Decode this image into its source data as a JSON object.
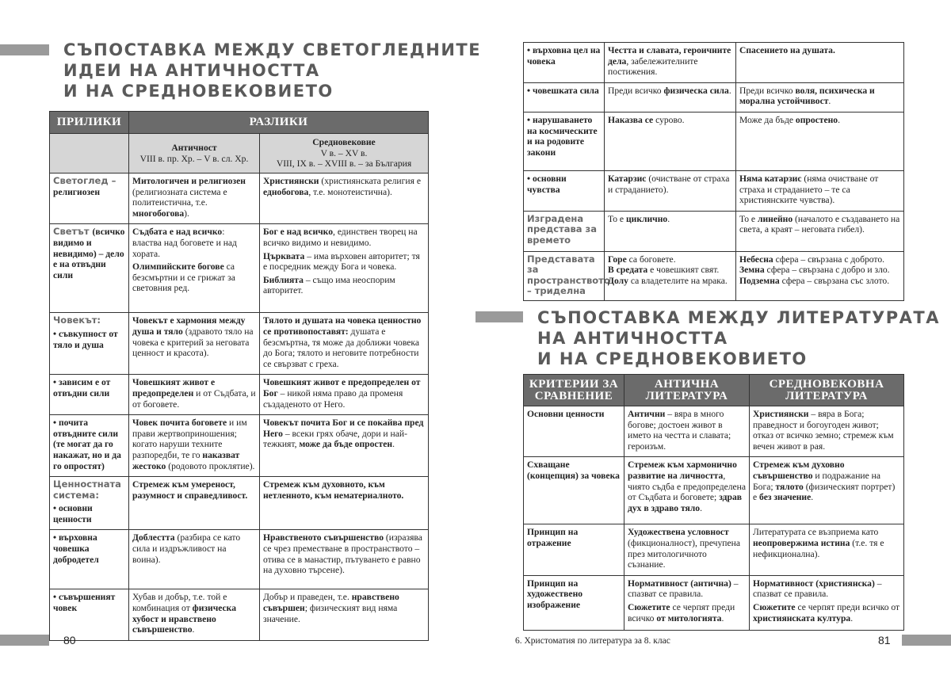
{
  "left_page": {
    "title": [
      "СЪПОСТАВКА МЕЖДУ СВЕТОГЛЕДНИТЕ",
      "ИДЕИ НА АНТИЧНОСТТА",
      "И НА СРЕДНОВЕКОВИЕТО"
    ],
    "table": {
      "header_similarities": "ПРИЛИКИ",
      "header_differences": "РАЗЛИКИ",
      "antiquity": {
        "name": "Античност",
        "period": "VIII в. пр. Хр. – V в. сл. Хр."
      },
      "middle_ages": {
        "name": "Средновековие",
        "period": "V в. – XV в.",
        "period_bg": "VIII, IX в. – XVIII в. – за България"
      },
      "rows": [
        [
          [
            [
              {
                "h": "Светоглед – "
              },
              {
                "b": "религиозен"
              }
            ]
          ],
          [
            [
              {
                "b": "Митологичен и религиозен"
              },
              {
                "t": " (религиозната система е политеистична, т.е. "
              },
              {
                "b": "многобогова"
              },
              {
                "t": ")."
              }
            ]
          ],
          [
            [
              {
                "b": "Християнски"
              },
              {
                "t": " (християнската религия е "
              },
              {
                "b": "еднобогова"
              },
              {
                "t": ", т.е. монотеистична)."
              }
            ]
          ]
        ],
        [
          [
            [
              {
                "h": "Светът "
              },
              {
                "b": "(всичко видимо и невидимо) – дело е на отвъдни сили"
              }
            ]
          ],
          [
            [
              {
                "b": "Съдбата е над всичко"
              },
              {
                "t": ": властва над боговете и над хората."
              }
            ],
            [
              {
                "b": "Олимпийските богове"
              },
              {
                "t": " са безсмъртни и се грижат за световния ред."
              }
            ]
          ],
          [
            [
              {
                "b": "Бог е над всичко"
              },
              {
                "t": ", единствен творец на всичко видимо и невидимо."
              }
            ],
            [
              {
                "b": "Църквата"
              },
              {
                "t": " – има върховен авторитет; тя е посредник между Бога и човека."
              }
            ],
            [
              {
                "b": "Библията"
              },
              {
                "t": " – също има неоспорим авторитет."
              }
            ]
          ]
        ],
        [
          [
            [
              {
                "h": "Човекът:"
              }
            ],
            [
              {
                "b": "• съвкупност от тяло и душа"
              }
            ]
          ],
          [
            [
              {
                "b": "Човекът е хармония между душа и тяло"
              },
              {
                "t": " (здравото тяло на човека е критерий за неговата ценност и красота)."
              }
            ]
          ],
          [
            [
              {
                "b": "Тялото и душата на човека ценностно се противопоставят:"
              },
              {
                "t": " душата е безсмъртна, тя може да доближи човека до Бога; тялото и неговите потребности се свързват с греха."
              }
            ]
          ]
        ],
        [
          [
            [
              {
                "b": "• зависим е от отвъдни сили"
              }
            ]
          ],
          [
            [
              {
                "b": "Човешкият живот е предопределен"
              },
              {
                "t": " и от Съдбата, и от боговете."
              }
            ]
          ],
          [
            [
              {
                "b": "Човешкият живот е предопределен от Бог"
              },
              {
                "t": " – никой няма право да променя създаденото от Него."
              }
            ]
          ]
        ],
        [
          [
            [
              {
                "b": "• почита отвъдните сили (те могат да го накажат, но и да го опростят)"
              }
            ]
          ],
          [
            [
              {
                "b": "Човек почита боговете"
              },
              {
                "t": " и им прави жертвоприношения; когато наруши техните разпоредби, те го "
              },
              {
                "b": "наказват жестоко"
              },
              {
                "t": " (родовото проклятие)."
              }
            ]
          ],
          [
            [
              {
                "b": "Човекът почита Бог и се покайва пред Него"
              },
              {
                "t": " – всеки грях обаче, дори и най-тежкият, "
              },
              {
                "b": "може да бъде опростен"
              },
              {
                "t": "."
              }
            ]
          ]
        ],
        [
          [
            [
              {
                "h": "Ценностната система:"
              }
            ],
            [
              {
                "b": "• основни ценности"
              }
            ]
          ],
          [
            [
              {
                "b": "Стремеж към умереност, разумност и справедливост."
              }
            ]
          ],
          [
            [
              {
                "b": "Стремеж към духовното, към нетленното, към нематериалното."
              }
            ]
          ]
        ],
        [
          [
            [
              {
                "b": "• върховна човешка добродетел"
              }
            ]
          ],
          [
            [
              {
                "b": "Доблестта"
              },
              {
                "t": " (разбира се като сила и издръжливост на воина)."
              }
            ]
          ],
          [
            [
              {
                "b": "Нравственото съвършенство"
              },
              {
                "t": " (изразява се чрез преместване в пространството – отива се в манастир, пътуването е равно на духовно търсене)."
              }
            ]
          ]
        ],
        [
          [
            [
              {
                "b": "• съвършеният човек"
              }
            ]
          ],
          [
            [
              {
                "t": "Хубав и добър, т.е. той е комбинация от "
              },
              {
                "b": "физическа хубост и нравствено съвършенство"
              },
              {
                "t": "."
              }
            ]
          ],
          [
            [
              {
                "t": "Добър и праведен, т.е. "
              },
              {
                "b": "нравствено съвършен"
              },
              {
                "t": "; физическият вид няма значение."
              }
            ]
          ]
        ]
      ]
    },
    "page_number": "80"
  },
  "right_page": {
    "table_continued": {
      "rows": [
        [
          [
            [
              {
                "b": "• върховна цел на човека"
              }
            ]
          ],
          [
            [
              {
                "b": "Честта и славата, героичните дела"
              },
              {
                "t": ", забележителните постижения."
              }
            ]
          ],
          [
            [
              {
                "b": "Спасението на душата."
              }
            ]
          ]
        ],
        [
          [
            [
              {
                "b": "• човешката сила"
              }
            ]
          ],
          [
            [
              {
                "t": "Преди всичко "
              },
              {
                "b": "физическа сила"
              },
              {
                "t": "."
              }
            ]
          ],
          [
            [
              {
                "t": "Преди всичко "
              },
              {
                "b": "воля, психическа и морална устойчивост"
              },
              {
                "t": "."
              }
            ]
          ]
        ],
        [
          [
            [
              {
                "b": "• нарушаването на космическите и на родовите закони"
              }
            ]
          ],
          [
            [
              {
                "b": "Наказва се"
              },
              {
                "t": " сурово."
              }
            ]
          ],
          [
            [
              {
                "t": "Може да бъде "
              },
              {
                "b": "опростено"
              },
              {
                "t": "."
              }
            ]
          ]
        ],
        [
          [
            [
              {
                "b": "• основни чувства"
              }
            ]
          ],
          [
            [
              {
                "b": "Катарзис"
              },
              {
                "t": " (очистване от страха и страданието)."
              }
            ]
          ],
          [
            [
              {
                "b": "Няма катарзис"
              },
              {
                "t": " (няма очистване от страха и страданието – те са християнските чувства)."
              }
            ]
          ]
        ],
        [
          [
            [
              {
                "h": "Изградена представа за времето"
              }
            ]
          ],
          [
            [
              {
                "t": "То е "
              },
              {
                "b": "циклично"
              },
              {
                "t": "."
              }
            ]
          ],
          [
            [
              {
                "t": "То е "
              },
              {
                "b": "линейно"
              },
              {
                "t": " (началото е създаването на света, а краят – неговата гибел)."
              }
            ]
          ]
        ],
        [
          [
            [
              {
                "h": "Представата за пространството – триделна"
              }
            ]
          ],
          [
            [
              {
                "b": "Горе"
              },
              {
                "t": " са боговете."
              }
            ],
            [
              {
                "b": "В средата"
              },
              {
                "t": " е човешкият свят."
              }
            ],
            [
              {
                "b": "Долу"
              },
              {
                "t": " са владетелите на мрака."
              }
            ]
          ],
          [
            [
              {
                "b": "Небесна"
              },
              {
                "t": " сфера – свързана с доброто."
              }
            ],
            [
              {
                "b": "Земна"
              },
              {
                "t": " сфера – свързана с добро и зло."
              }
            ],
            [
              {
                "b": "Подземна"
              },
              {
                "t": " сфера – свързана със злото."
              }
            ]
          ]
        ]
      ]
    },
    "title": [
      "СЪПОСТАВКА МЕЖДУ ЛИТЕРАТУРАТА",
      "НА АНТИЧНОСТТА",
      "И НА СРЕДНОВЕКОВИЕТО"
    ],
    "literature_table": {
      "headers": [
        "КРИТЕРИИ ЗА СРАВНЕНИЕ",
        "АНТИЧНА ЛИТЕРАТУРА",
        "СРЕДНОВЕКОВНА ЛИТЕРАТУРА"
      ],
      "rows": [
        [
          [
            [
              {
                "b": "Основни ценности"
              }
            ]
          ],
          [
            [
              {
                "b": "Антични"
              },
              {
                "t": " – вяра в много богове; достоен живот в името на честта и славата; героизъм."
              }
            ]
          ],
          [
            [
              {
                "b": "Християнски"
              },
              {
                "t": " – вяра в Бога; праведност и богоугоден живот; отказ от всичко земно; стремеж към вечен живот в рая."
              }
            ]
          ]
        ],
        [
          [
            [
              {
                "b": "Схващане (концепция) за човека"
              }
            ]
          ],
          [
            [
              {
                "b": "Стремеж към хармонично развитие на личността"
              },
              {
                "t": ", чиято съдба е предопределена от Съдбата и боговете; "
              },
              {
                "b": "здрав дух в здраво тяло"
              },
              {
                "t": "."
              }
            ]
          ],
          [
            [
              {
                "b": "Стремеж към духовно съвършенство"
              },
              {
                "t": " и подражание на Бога; "
              },
              {
                "b": "тялото"
              },
              {
                "t": " (физическият портрет) е "
              },
              {
                "b": "без значение"
              },
              {
                "t": "."
              }
            ]
          ]
        ],
        [
          [
            [
              {
                "b": "Принцип на отражение"
              }
            ]
          ],
          [
            [
              {
                "b": "Художествена условност"
              },
              {
                "t": " (фикционалност), пречупена през митологичното съзнание."
              }
            ]
          ],
          [
            [
              {
                "t": "Литературата се възприема като "
              },
              {
                "b": "неопровержима истина"
              },
              {
                "t": " (т.е. тя е нефикционална)."
              }
            ]
          ]
        ],
        [
          [
            [
              {
                "b": "Принцип на художествено изображение"
              }
            ]
          ],
          [
            [
              {
                "b": "Нормативност (антична)"
              },
              {
                "t": " – спазват се правила."
              }
            ],
            [
              {
                "b": "Сюжетите"
              },
              {
                "t": " се черпят преди всичко "
              },
              {
                "b": "от митологията"
              },
              {
                "t": "."
              }
            ]
          ],
          [
            [
              {
                "b": "Нормативност (християнска)"
              },
              {
                "t": " – спазват се правила."
              }
            ],
            [
              {
                "b": "Сюжетите"
              },
              {
                "t": " се черпят преди всичко от "
              },
              {
                "b": "християнската култура"
              },
              {
                "t": "."
              }
            ]
          ]
        ]
      ]
    },
    "footer_text": "6. Христоматия по литература за 8. клас",
    "page_number": "81"
  }
}
